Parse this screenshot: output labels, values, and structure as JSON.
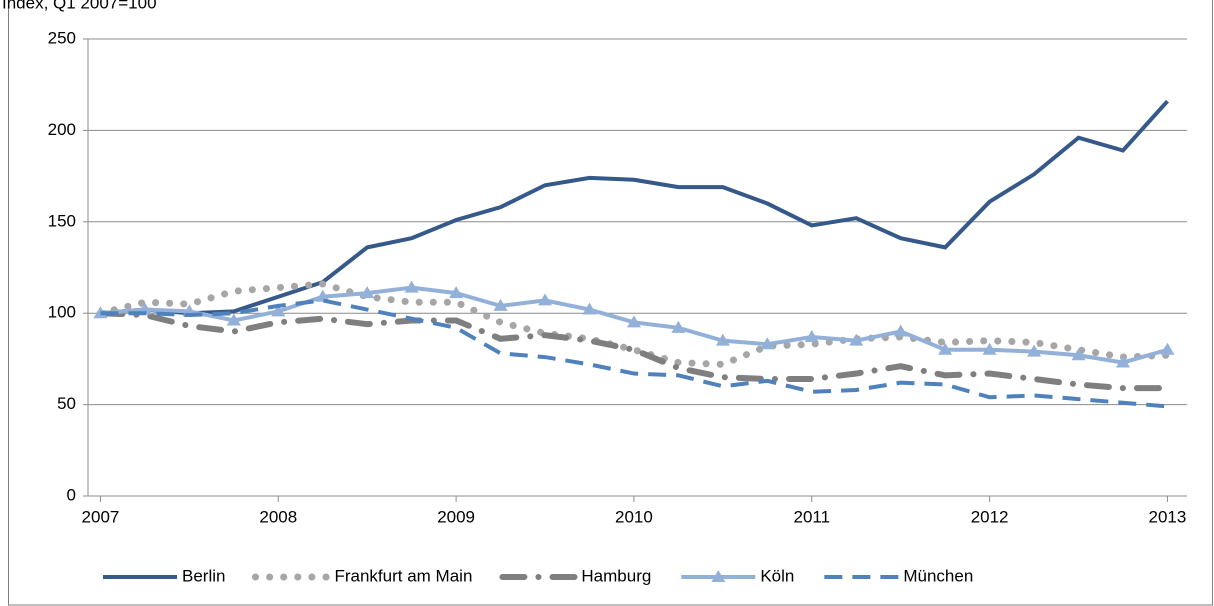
{
  "chart_data": {
    "type": "line",
    "title": "Index, Q1 2007=100",
    "x": [
      2007,
      2007.25,
      2007.5,
      2007.75,
      2008,
      2008.25,
      2008.5,
      2008.75,
      2009,
      2009.25,
      2009.5,
      2009.75,
      2010,
      2010.25,
      2010.5,
      2010.75,
      2011,
      2011.25,
      2011.5,
      2011.75,
      2012,
      2012.25,
      2012.5,
      2012.75,
      2013
    ],
    "xlim": [
      2006.93,
      2013.11
    ],
    "xticks": [
      2007,
      2008,
      2009,
      2010,
      2011,
      2012,
      2013
    ],
    "ylim": [
      0,
      250
    ],
    "yticks": [
      0,
      50,
      100,
      150,
      200,
      250
    ],
    "grid": true,
    "legend": "bottom",
    "series": [
      {
        "name": "Berlin",
        "color": "#35598a",
        "line_style": "solid",
        "values": [
          100,
          102,
          100,
          101,
          109,
          117,
          136,
          141,
          151,
          158,
          170,
          174,
          173,
          169,
          169,
          160,
          148,
          152,
          141,
          136,
          161,
          176,
          196,
          189,
          216
        ]
      },
      {
        "name": "Frankfurt am Main",
        "color": "#a6a6a6",
        "line_style": "dotted",
        "values": [
          100,
          106,
          105,
          112,
          114,
          116,
          109,
          106,
          106,
          95,
          89,
          86,
          80,
          73,
          72,
          82,
          83,
          86,
          87,
          84,
          85,
          84,
          80,
          76,
          77
        ]
      },
      {
        "name": "Hamburg",
        "color": "#7f7f7f",
        "line_style": "dash-dot",
        "values": [
          100,
          99,
          93,
          90,
          95,
          97,
          94,
          96,
          96,
          86,
          88,
          85,
          80,
          70,
          65,
          64,
          64,
          67,
          71,
          66,
          67,
          64,
          61,
          59,
          59
        ]
      },
      {
        "name": "Köln",
        "color": "#93b0d9",
        "line_style": "solid",
        "marker": "triangle",
        "values": [
          100,
          102,
          101,
          96,
          101,
          109,
          111,
          114,
          111,
          104,
          107,
          102,
          95,
          92,
          85,
          83,
          87,
          85,
          90,
          80,
          80,
          79,
          77,
          73,
          80
        ]
      },
      {
        "name": "München",
        "color": "#4f81bd",
        "line_style": "dashed",
        "values": [
          100,
          100,
          99,
          100,
          104,
          107,
          102,
          97,
          92,
          78,
          76,
          72,
          67,
          66,
          60,
          63,
          57,
          58,
          62,
          61,
          54,
          55,
          53,
          51,
          49
        ]
      }
    ]
  }
}
